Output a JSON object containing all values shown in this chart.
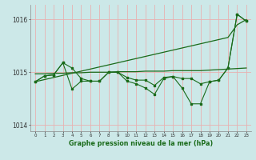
{
  "xlabel": "Graphe pression niveau de la mer (hPa)",
  "bg_color": "#cce8e8",
  "grid_color": "#e8b0b0",
  "line_color": "#1a6b1a",
  "x_values": [
    0,
    1,
    2,
    3,
    4,
    5,
    6,
    7,
    8,
    9,
    10,
    11,
    12,
    13,
    14,
    15,
    16,
    17,
    18,
    19,
    20,
    21,
    22,
    23
  ],
  "trend1": [
    1014.82,
    1014.86,
    1014.9,
    1014.94,
    1014.98,
    1015.02,
    1015.06,
    1015.1,
    1015.14,
    1015.18,
    1015.22,
    1015.26,
    1015.3,
    1015.34,
    1015.38,
    1015.42,
    1015.46,
    1015.5,
    1015.54,
    1015.58,
    1015.62,
    1015.66,
    1015.9,
    1016.0
  ],
  "trend2": [
    1014.97,
    1014.97,
    1014.98,
    1014.98,
    1014.99,
    1014.99,
    1015.0,
    1015.0,
    1015.0,
    1015.01,
    1015.01,
    1015.01,
    1015.02,
    1015.02,
    1015.02,
    1015.03,
    1015.03,
    1015.03,
    1015.03,
    1015.04,
    1015.05,
    1015.06,
    1015.07,
    1015.08
  ],
  "series1": [
    1014.82,
    1014.93,
    1014.95,
    1015.18,
    1015.08,
    1014.88,
    1014.83,
    1014.83,
    1015.0,
    1015.0,
    1014.9,
    1014.85,
    1014.85,
    1014.75,
    1014.9,
    1014.92,
    1014.88,
    1014.88,
    1014.78,
    1014.82,
    1014.85,
    1015.08,
    1016.1,
    1015.97
  ],
  "series2": [
    1014.82,
    1014.93,
    1014.95,
    1015.18,
    1014.68,
    1014.83,
    1014.83,
    1014.83,
    1015.0,
    1015.0,
    1014.83,
    1014.78,
    1014.7,
    1014.58,
    1014.88,
    1014.92,
    1014.7,
    1014.4,
    1014.4,
    1014.82,
    1014.85,
    1015.08,
    1016.1,
    1015.97
  ],
  "ylim": [
    1013.88,
    1016.28
  ],
  "yticks": [
    1014,
    1015,
    1016
  ],
  "xlim": [
    -0.5,
    23.5
  ]
}
